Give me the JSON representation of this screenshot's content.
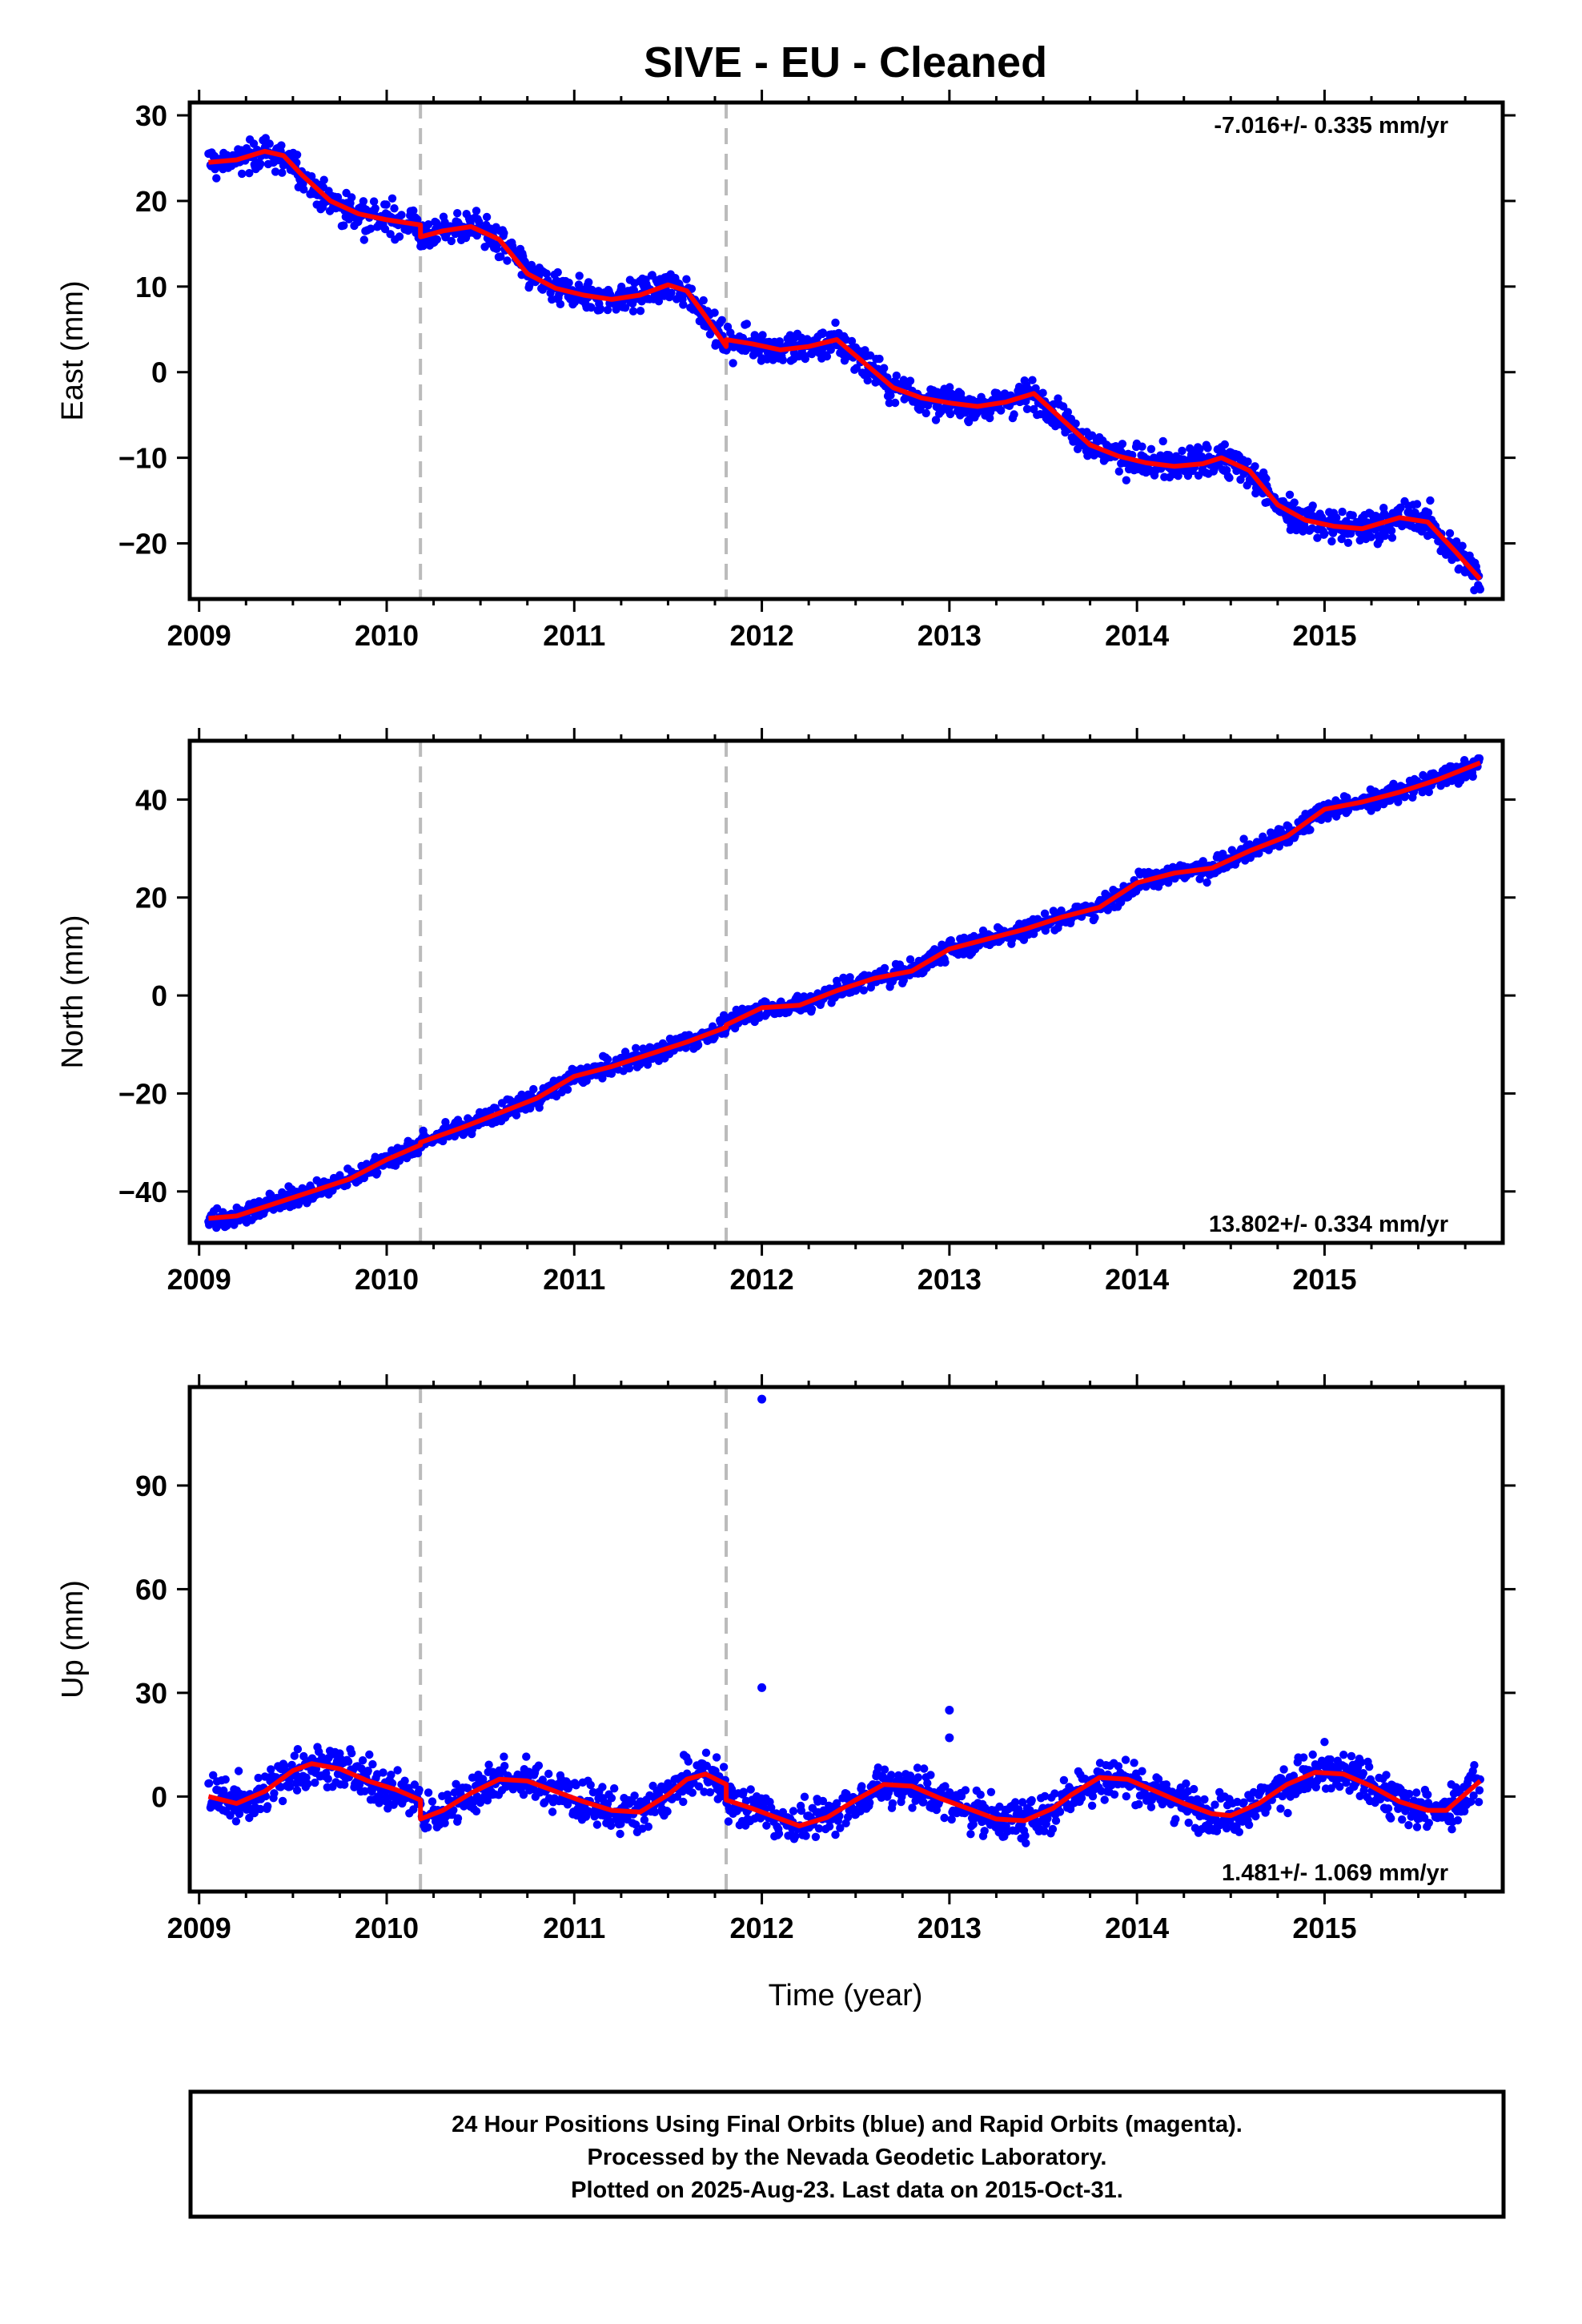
{
  "title": "SIVE  - EU - Cleaned",
  "xlabel": "Time (year)",
  "x_tick_labels": [
    "2009",
    "2010",
    "2011",
    "2012",
    "2013",
    "2014",
    "2015"
  ],
  "footer": [
    "24 Hour Positions Using Final Orbits (blue) and Rapid Orbits (magenta).",
    "Processed by the Nevada Geodetic Laboratory.",
    "Plotted on 2025-Aug-23. Last data on 2015-Oct-31."
  ],
  "colors": {
    "points": "#0000ff",
    "model": "#ff0000",
    "offset_lines": "#bbbbbb",
    "frame": "#000000"
  },
  "chart_data": [
    {
      "type": "scatter",
      "panel": "east",
      "ylabel": "East (mm)",
      "xlim": [
        2008.95,
        2015.95
      ],
      "ylim": [
        -26.5,
        31.5
      ],
      "yticks": [
        -20,
        -10,
        0,
        10,
        20,
        30
      ],
      "rate": "-7.016+/- 0.335 mm/yr",
      "rate_position": "top-right",
      "offsets": [
        2010.18,
        2011.81
      ],
      "model": {
        "x": [
          2009.05,
          2009.2,
          2009.35,
          2009.45,
          2009.55,
          2009.7,
          2009.85,
          2010.0,
          2010.18,
          2010.18,
          2010.3,
          2010.45,
          2010.6,
          2010.75,
          2010.9,
          2011.05,
          2011.2,
          2011.35,
          2011.5,
          2011.6,
          2011.7,
          2011.81,
          2011.81,
          2011.95,
          2012.1,
          2012.25,
          2012.4,
          2012.55,
          2012.7,
          2012.85,
          2013.0,
          2013.15,
          2013.3,
          2013.45,
          2013.6,
          2013.75,
          2013.9,
          2014.05,
          2014.2,
          2014.35,
          2014.45,
          2014.6,
          2014.75,
          2014.9,
          2015.05,
          2015.2,
          2015.4,
          2015.55,
          2015.7,
          2015.83
        ],
        "y": [
          24.5,
          24.8,
          25.8,
          25.3,
          23.0,
          20.0,
          18.5,
          17.8,
          17.2,
          15.8,
          16.5,
          17.0,
          15.5,
          11.5,
          9.8,
          9.0,
          8.5,
          9.0,
          10.2,
          9.5,
          6.5,
          3.0,
          3.8,
          3.3,
          2.6,
          3.0,
          3.8,
          1.0,
          -1.8,
          -3.0,
          -3.6,
          -4.0,
          -3.5,
          -2.5,
          -5.5,
          -8.5,
          -9.8,
          -10.6,
          -11.0,
          -10.7,
          -10.0,
          -11.5,
          -15.5,
          -17.3,
          -18.0,
          -18.3,
          -17.0,
          -17.5,
          -21.0,
          -24.2
        ]
      }
    },
    {
      "type": "scatter",
      "panel": "north",
      "ylabel": "North (mm)",
      "xlim": [
        2008.95,
        2015.95
      ],
      "ylim": [
        -50.5,
        52.0
      ],
      "yticks": [
        -40,
        -20,
        0,
        20,
        40
      ],
      "rate": "13.802+/- 0.334 mm/yr",
      "rate_position": "bottom-right",
      "offsets": [
        2010.18,
        2011.81
      ],
      "model": {
        "x": [
          2009.05,
          2009.2,
          2009.4,
          2009.6,
          2009.8,
          2010.0,
          2010.18,
          2010.18,
          2010.4,
          2010.6,
          2010.8,
          2011.0,
          2011.2,
          2011.4,
          2011.6,
          2011.81,
          2011.81,
          2012.0,
          2012.2,
          2012.4,
          2012.6,
          2012.8,
          2013.0,
          2013.2,
          2013.4,
          2013.6,
          2013.8,
          2014.0,
          2014.2,
          2014.4,
          2014.6,
          2014.8,
          2015.0,
          2015.2,
          2015.4,
          2015.6,
          2015.83
        ],
        "y": [
          -45.5,
          -45.0,
          -42.5,
          -40.0,
          -37.5,
          -33.5,
          -30.5,
          -30.0,
          -27.0,
          -24.0,
          -21.0,
          -16.5,
          -14.5,
          -12.0,
          -9.5,
          -6.5,
          -6.0,
          -2.5,
          -2.0,
          1.0,
          3.5,
          5.0,
          9.5,
          11.5,
          13.5,
          16.0,
          18.0,
          23.0,
          25.0,
          26.0,
          29.5,
          32.5,
          38.0,
          39.5,
          41.5,
          44.0,
          47.5
        ]
      }
    },
    {
      "type": "scatter",
      "panel": "up",
      "ylabel": "Up (mm)",
      "xlim": [
        2008.95,
        2015.95
      ],
      "ylim": [
        -27.5,
        118.5
      ],
      "yticks": [
        0,
        30,
        60,
        90
      ],
      "rate": "1.481+/- 1.069 mm/yr",
      "rate_position": "bottom-right",
      "offsets": [
        2010.18,
        2011.81
      ],
      "outliers": {
        "x": [
          2012.0,
          2012.0,
          2013.0,
          2013.0
        ],
        "y": [
          115.0,
          31.5,
          25.0,
          17.0
        ]
      },
      "model": {
        "x": [
          2009.05,
          2009.2,
          2009.35,
          2009.5,
          2009.6,
          2009.75,
          2009.9,
          2010.05,
          2010.18,
          2010.18,
          2010.3,
          2010.45,
          2010.6,
          2010.75,
          2010.9,
          2011.05,
          2011.2,
          2011.35,
          2011.5,
          2011.6,
          2011.7,
          2011.81,
          2011.81,
          2011.95,
          2012.1,
          2012.2,
          2012.35,
          2012.5,
          2012.65,
          2012.8,
          2012.95,
          2013.1,
          2013.25,
          2013.4,
          2013.55,
          2013.65,
          2013.8,
          2013.95,
          2014.1,
          2014.25,
          2014.4,
          2014.5,
          2014.65,
          2014.8,
          2014.95,
          2015.1,
          2015.25,
          2015.4,
          2015.55,
          2015.65,
          2015.83
        ],
        "y": [
          0.0,
          -2.0,
          1.5,
          7.5,
          9.5,
          8.0,
          4.5,
          2.0,
          -1.0,
          -6.5,
          -4.0,
          1.0,
          5.0,
          4.5,
          1.5,
          -1.5,
          -4.0,
          -4.5,
          0.5,
          5.0,
          6.5,
          3.5,
          -1.0,
          -3.5,
          -6.5,
          -8.5,
          -6.0,
          -1.0,
          3.5,
          3.0,
          -0.5,
          -3.5,
          -6.5,
          -7.0,
          -3.5,
          0.5,
          5.5,
          5.0,
          1.5,
          -2.0,
          -5.0,
          -5.5,
          -2.0,
          3.5,
          7.0,
          6.5,
          3.0,
          -1.5,
          -4.0,
          -4.0,
          4.5
        ]
      }
    }
  ]
}
